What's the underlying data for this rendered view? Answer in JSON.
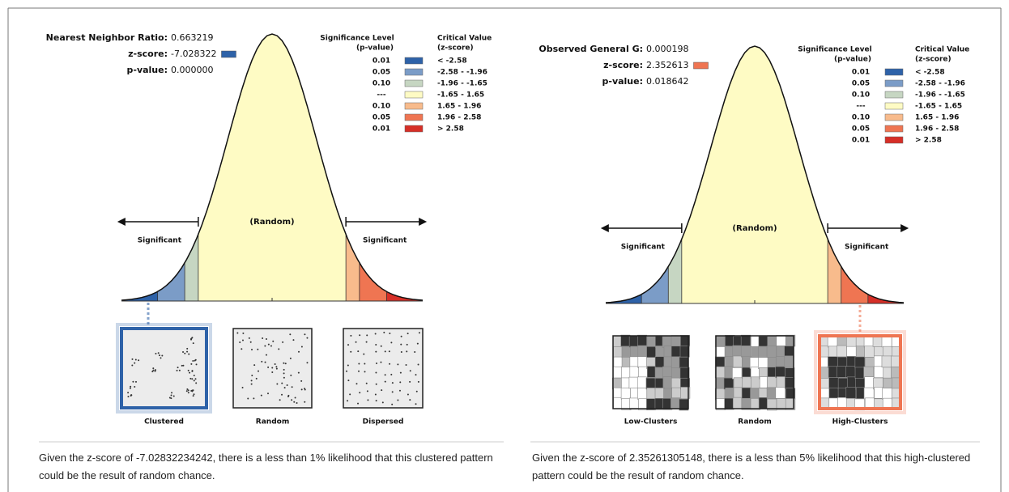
{
  "panels": [
    {
      "stats": [
        {
          "label": "Nearest Neighbor Ratio:",
          "value": "0.663219"
        },
        {
          "label": "z-score:",
          "value": "-7.028322",
          "swatch": "#2e62a8"
        },
        {
          "label": "p-value:",
          "value": "0.000000"
        }
      ],
      "legend": {
        "sig_header": "Significance Level",
        "sig_sub": "(p-value)",
        "crit_header": "Critical Value",
        "crit_sub": "(z-score)",
        "rows": [
          {
            "p": "0.01",
            "color": "#2e62a8",
            "z": "< -2.58"
          },
          {
            "p": "0.05",
            "color": "#7b9cc7",
            "z": "-2.58 - -1.96"
          },
          {
            "p": "0.10",
            "color": "#c6d6c2",
            "z": "-1.96 - -1.65"
          },
          {
            "p": "---",
            "color": "#fefbc4",
            "z": "-1.65 - 1.65"
          },
          {
            "p": "0.10",
            "color": "#f8bb8c",
            "z": "1.65 - 1.96"
          },
          {
            "p": "0.05",
            "color": "#ef7552",
            "z": "1.96 - 2.58"
          },
          {
            "p": "0.01",
            "color": "#d62f27",
            "z": "> 2.58"
          }
        ]
      },
      "curve": {
        "center_label": "(Random)",
        "left_label": "Significant",
        "right_label": "Significant"
      },
      "patterns": [
        {
          "label": "Clustered",
          "selected": true
        },
        {
          "label": "Random",
          "selected": false
        },
        {
          "label": "Dispersed",
          "selected": false
        }
      ],
      "summary": "Given the z-score of -7.02832234242, there is a less than 1% likelihood that this clustered pattern could be the result of random chance."
    },
    {
      "stats": [
        {
          "label": "Observed General G:",
          "value": "0.000198"
        },
        {
          "label": "z-score:",
          "value": "2.352613",
          "swatch": "#ef7552"
        },
        {
          "label": "p-value:",
          "value": "0.018642"
        }
      ],
      "legend": {
        "sig_header": "Significance Level",
        "sig_sub": "(p-value)",
        "crit_header": "Critical Value",
        "crit_sub": "(z-score)",
        "rows": [
          {
            "p": "0.01",
            "color": "#2e62a8",
            "z": "< -2.58"
          },
          {
            "p": "0.05",
            "color": "#7b9cc7",
            "z": "-2.58 - -1.96"
          },
          {
            "p": "0.10",
            "color": "#c6d6c2",
            "z": "-1.96 - -1.65"
          },
          {
            "p": "---",
            "color": "#fefbc4",
            "z": "-1.65 - 1.65"
          },
          {
            "p": "0.10",
            "color": "#f8bb8c",
            "z": "1.65 - 1.96"
          },
          {
            "p": "0.05",
            "color": "#ef7552",
            "z": "1.96 - 2.58"
          },
          {
            "p": "0.01",
            "color": "#d62f27",
            "z": "> 2.58"
          }
        ]
      },
      "curve": {
        "center_label": "(Random)",
        "left_label": "Significant",
        "right_label": "Significant"
      },
      "patterns": [
        {
          "label": "Low-Clusters",
          "selected": false
        },
        {
          "label": "Random",
          "selected": false
        },
        {
          "label": "High-Clusters",
          "selected": true
        }
      ],
      "summary": "Given the z-score of 2.35261305148, there is a less than 5% likelihood that this high-clustered pattern could be the result of random chance."
    }
  ]
}
